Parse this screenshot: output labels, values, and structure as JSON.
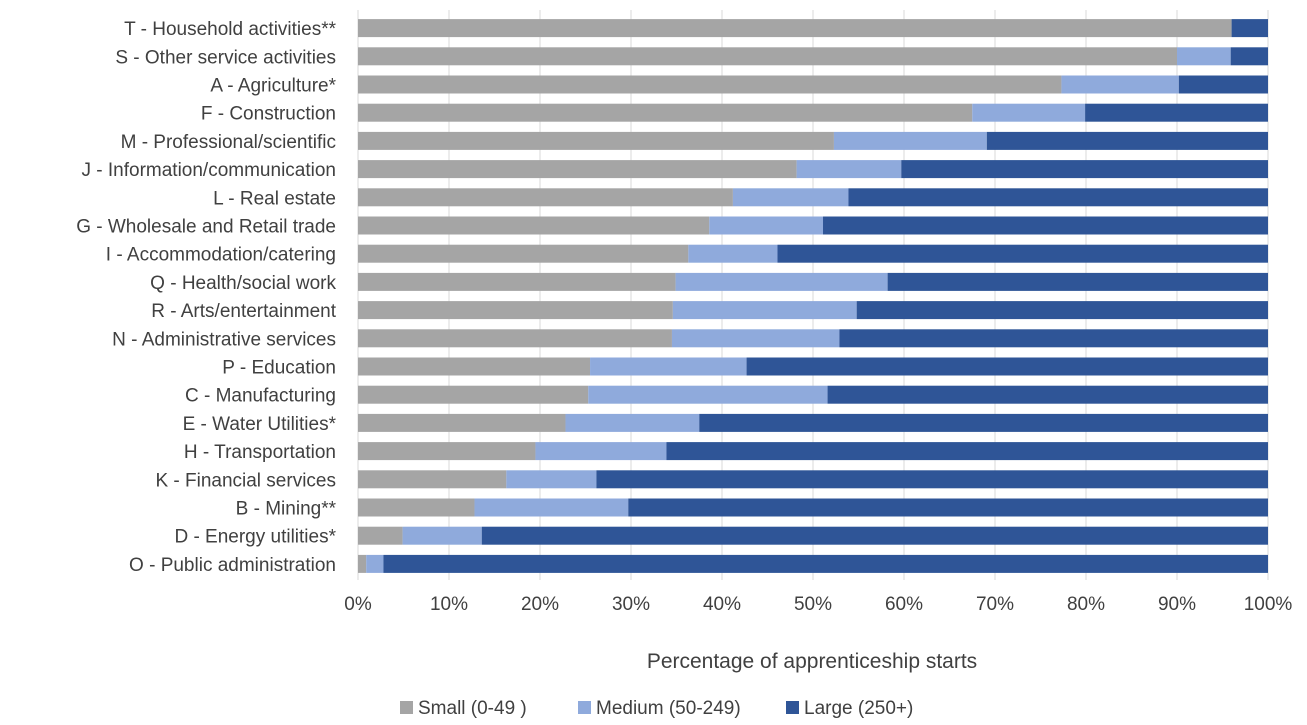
{
  "chart_data": {
    "type": "bar",
    "orientation": "horizontal",
    "stacked": true,
    "stack_mode": "percent",
    "categories": [
      "T - Household activities**",
      "S - Other service activities",
      "A - Agriculture*",
      "F - Construction",
      "M - Professional/scientific",
      "J - Information/communication",
      "L - Real estate",
      "G - Wholesale and Retail trade",
      "I - Accommodation/catering",
      "Q - Health/social work",
      "R - Arts/entertainment",
      "N - Administrative services",
      "P - Education",
      "C - Manufacturing",
      "E - Water Utilities*",
      "H - Transportation",
      "K - Financial services",
      "B - Mining**",
      "D - Energy utilities*",
      "O - Public administration"
    ],
    "series": [
      {
        "name": "Small (0-49 )",
        "color": "#a5a5a5",
        "values": [
          96,
          90,
          77.3,
          67.5,
          52.3,
          48.2,
          41.2,
          38.6,
          36.3,
          34.9,
          34.6,
          34.5,
          25.5,
          25.3,
          22.8,
          19.5,
          16.3,
          12.8,
          4.9,
          0.9
        ]
      },
      {
        "name": "Medium (50-249)",
        "color": "#8faadc",
        "values": [
          0,
          5.9,
          12.9,
          12.4,
          16.8,
          11.5,
          12.7,
          12.5,
          9.8,
          23.3,
          20.2,
          18.4,
          17.2,
          26.3,
          14.7,
          14.4,
          9.9,
          16.9,
          8.7,
          1.9
        ]
      },
      {
        "name": "Large (250+)",
        "color": "#2f5597",
        "values": [
          4,
          4.1,
          9.8,
          20.1,
          30.9,
          40.3,
          46.1,
          48.9,
          53.9,
          41.8,
          45.2,
          47.1,
          57.3,
          48.4,
          62.5,
          66.1,
          73.8,
          70.3,
          86.4,
          97.2
        ]
      }
    ],
    "xlabel": "Percentage of apprenticeship starts",
    "ylabel": "",
    "xlim": [
      0,
      100
    ],
    "x_ticks": [
      "0%",
      "10%",
      "20%",
      "30%",
      "40%",
      "50%",
      "60%",
      "70%",
      "80%",
      "90%",
      "100%"
    ],
    "grid": true,
    "legend_position": "bottom"
  }
}
